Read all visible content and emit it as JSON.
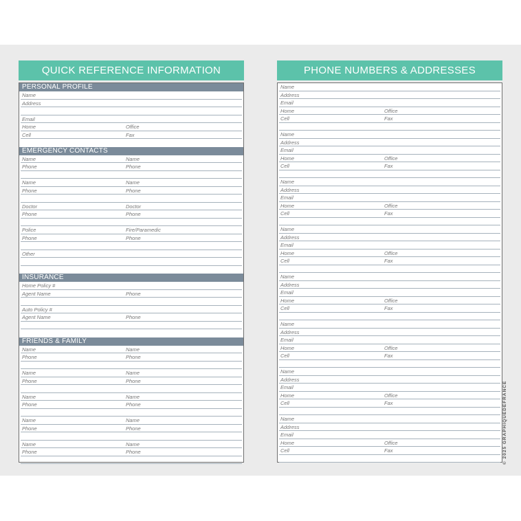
{
  "left": {
    "title": "QUICK REFERENCE INFORMATION",
    "sections": [
      {
        "title": "PERSONAL PROFILE",
        "rows": [
          [
            "Name",
            ""
          ],
          [
            "Address",
            ""
          ],
          [
            "",
            ""
          ],
          [
            "Email",
            ""
          ],
          [
            "Home",
            "Office"
          ],
          [
            "Cell",
            "Fax"
          ],
          [
            "",
            ""
          ]
        ]
      },
      {
        "title": "EMERGENCY CONTACTS",
        "rows": [
          [
            "Name",
            "Name"
          ],
          [
            "Phone",
            "Phone"
          ],
          [
            "",
            ""
          ],
          [
            "Name",
            "Name"
          ],
          [
            "Phone",
            "Phone"
          ],
          [
            "",
            ""
          ],
          [
            "Doctor",
            "Doctor"
          ],
          [
            "Phone",
            "Phone"
          ],
          [
            "",
            ""
          ],
          [
            "Police",
            "Fire/Paramedic"
          ],
          [
            "Phone",
            "Phone"
          ],
          [
            "",
            ""
          ],
          [
            "Other",
            ""
          ],
          [
            "",
            ""
          ],
          [
            "",
            ""
          ]
        ]
      },
      {
        "title": "INSURANCE",
        "rows": [
          [
            "Home Policy #",
            ""
          ],
          [
            "Agent Name",
            "Phone"
          ],
          [
            "",
            ""
          ],
          [
            "Auto Policy #",
            ""
          ],
          [
            "Agent Name",
            "Phone"
          ],
          [
            "",
            ""
          ],
          [
            "",
            ""
          ]
        ]
      },
      {
        "title": "FRIENDS & FAMILY",
        "rows": [
          [
            "Name",
            "Name"
          ],
          [
            "Phone",
            "Phone"
          ],
          [
            "",
            ""
          ],
          [
            "Name",
            "Name"
          ],
          [
            "Phone",
            "Phone"
          ],
          [
            "",
            ""
          ],
          [
            "Name",
            "Name"
          ],
          [
            "Phone",
            "Phone"
          ],
          [
            "",
            ""
          ],
          [
            "Name",
            "Name"
          ],
          [
            "Phone",
            "Phone"
          ],
          [
            "",
            ""
          ],
          [
            "Name",
            "Name"
          ],
          [
            "Phone",
            "Phone"
          ],
          [
            "",
            ""
          ]
        ]
      }
    ]
  },
  "right": {
    "title": "PHONE NUMBERS & ADDRESSES",
    "entry_rows": [
      [
        "Name",
        ""
      ],
      [
        "Address",
        ""
      ],
      [
        "Email",
        ""
      ],
      [
        "Home",
        "Office"
      ],
      [
        "Cell",
        "Fax"
      ],
      [
        "",
        ""
      ]
    ],
    "entry_count": 8
  },
  "copyright": "© 2025 GRAPHIQUEDEFRANCE",
  "colors": {
    "header": "#5cc2aa",
    "section_bar": "#7b8b9a",
    "rule": "#a5b1bb"
  }
}
